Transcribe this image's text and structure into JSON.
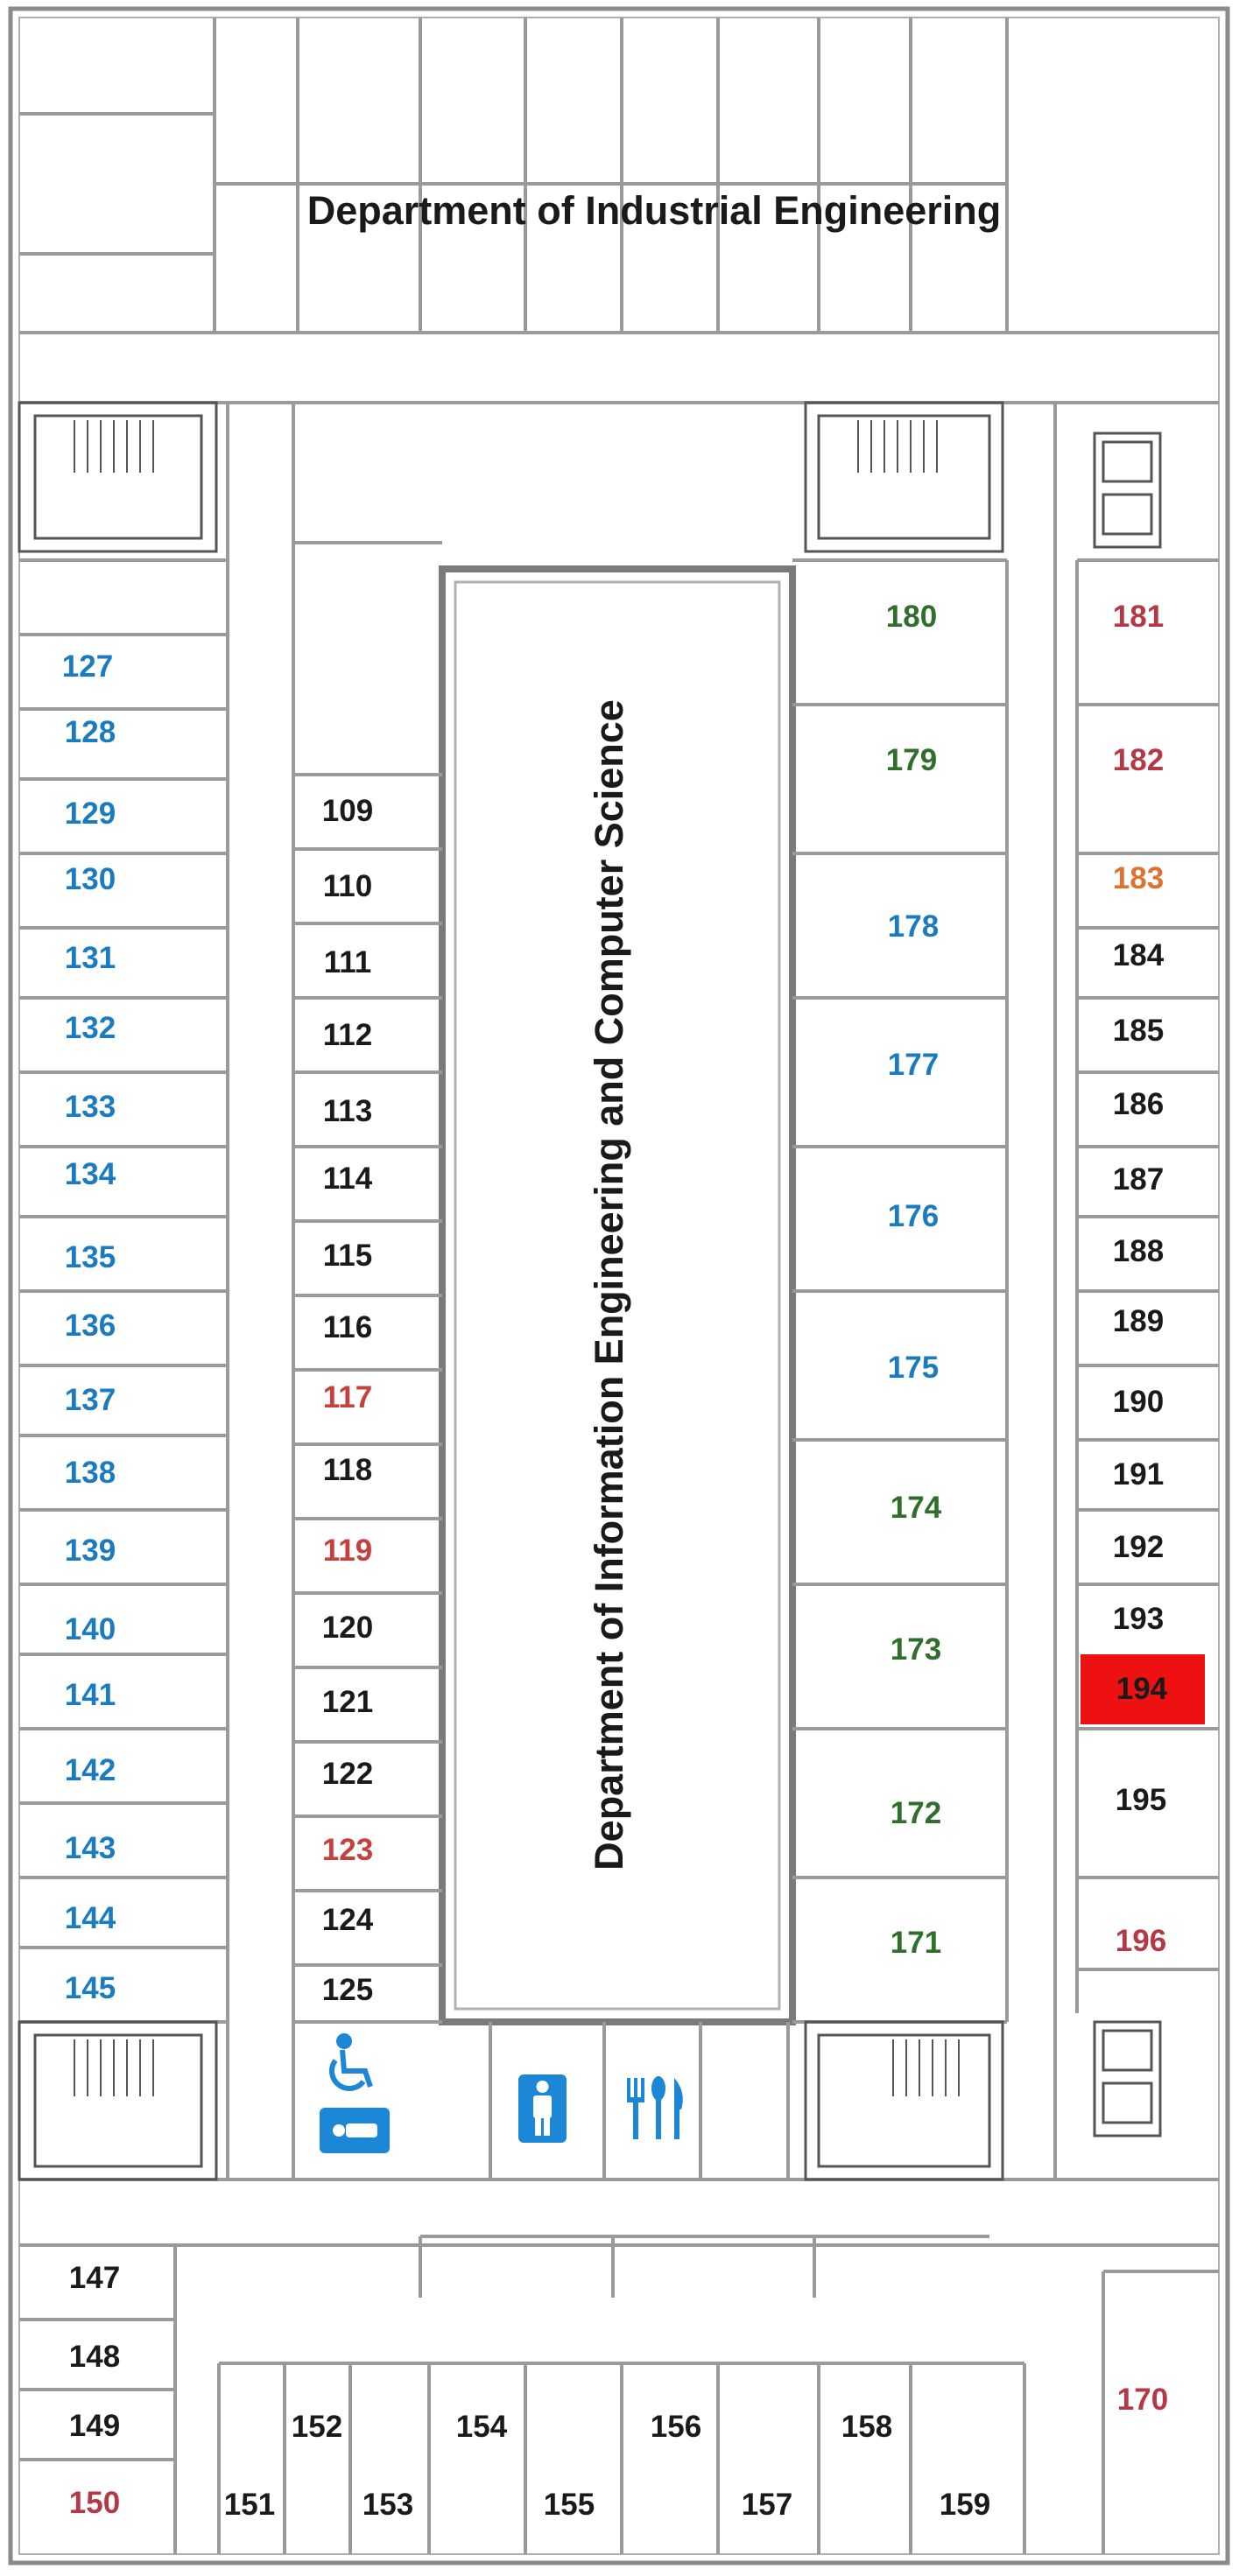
{
  "departments": {
    "top": "Department of Industrial Engineering",
    "center": "Department of Information Engineering and Computer Science"
  },
  "colors": {
    "black": "#1a1a1a",
    "blue": "#1b7bc0",
    "green": "#2f6f2b",
    "red": "#c6403c",
    "crimson": "#b53845",
    "orange": "#e0722f",
    "highlight": "#ee1111",
    "icon_blue": "#1b87d6"
  },
  "highlighted_room": "194",
  "rooms": [
    {
      "id": "127",
      "c": "blue"
    },
    {
      "id": "128",
      "c": "blue"
    },
    {
      "id": "129",
      "c": "blue"
    },
    {
      "id": "130",
      "c": "blue"
    },
    {
      "id": "131",
      "c": "blue"
    },
    {
      "id": "132",
      "c": "blue"
    },
    {
      "id": "133",
      "c": "blue"
    },
    {
      "id": "134",
      "c": "blue"
    },
    {
      "id": "135",
      "c": "blue"
    },
    {
      "id": "136",
      "c": "blue"
    },
    {
      "id": "137",
      "c": "blue"
    },
    {
      "id": "138",
      "c": "blue"
    },
    {
      "id": "139",
      "c": "blue"
    },
    {
      "id": "140",
      "c": "blue"
    },
    {
      "id": "141",
      "c": "blue"
    },
    {
      "id": "142",
      "c": "blue"
    },
    {
      "id": "143",
      "c": "blue"
    },
    {
      "id": "144",
      "c": "blue"
    },
    {
      "id": "145",
      "c": "blue"
    },
    {
      "id": "109",
      "c": "black"
    },
    {
      "id": "110",
      "c": "black"
    },
    {
      "id": "111",
      "c": "black"
    },
    {
      "id": "112",
      "c": "black"
    },
    {
      "id": "113",
      "c": "black"
    },
    {
      "id": "114",
      "c": "black"
    },
    {
      "id": "115",
      "c": "black"
    },
    {
      "id": "116",
      "c": "black"
    },
    {
      "id": "117",
      "c": "red"
    },
    {
      "id": "118",
      "c": "black"
    },
    {
      "id": "119",
      "c": "red"
    },
    {
      "id": "120",
      "c": "black"
    },
    {
      "id": "121",
      "c": "black"
    },
    {
      "id": "122",
      "c": "black"
    },
    {
      "id": "123",
      "c": "red"
    },
    {
      "id": "124",
      "c": "black"
    },
    {
      "id": "125",
      "c": "black"
    },
    {
      "id": "180",
      "c": "green"
    },
    {
      "id": "179",
      "c": "green"
    },
    {
      "id": "178",
      "c": "blue"
    },
    {
      "id": "177",
      "c": "blue"
    },
    {
      "id": "176",
      "c": "blue"
    },
    {
      "id": "175",
      "c": "blue"
    },
    {
      "id": "174",
      "c": "green"
    },
    {
      "id": "173",
      "c": "green"
    },
    {
      "id": "172",
      "c": "green"
    },
    {
      "id": "171",
      "c": "green"
    },
    {
      "id": "181",
      "c": "crimson"
    },
    {
      "id": "182",
      "c": "crimson"
    },
    {
      "id": "183",
      "c": "orange"
    },
    {
      "id": "184",
      "c": "black"
    },
    {
      "id": "185",
      "c": "black"
    },
    {
      "id": "186",
      "c": "black"
    },
    {
      "id": "187",
      "c": "black"
    },
    {
      "id": "188",
      "c": "black"
    },
    {
      "id": "189",
      "c": "black"
    },
    {
      "id": "190",
      "c": "black"
    },
    {
      "id": "191",
      "c": "black"
    },
    {
      "id": "192",
      "c": "black"
    },
    {
      "id": "193",
      "c": "black"
    },
    {
      "id": "194",
      "c": "black"
    },
    {
      "id": "195",
      "c": "black"
    },
    {
      "id": "196",
      "c": "crimson"
    },
    {
      "id": "147",
      "c": "black"
    },
    {
      "id": "148",
      "c": "black"
    },
    {
      "id": "149",
      "c": "black"
    },
    {
      "id": "150",
      "c": "crimson"
    },
    {
      "id": "151",
      "c": "black"
    },
    {
      "id": "152",
      "c": "black"
    },
    {
      "id": "153",
      "c": "black"
    },
    {
      "id": "154",
      "c": "black"
    },
    {
      "id": "155",
      "c": "black"
    },
    {
      "id": "156",
      "c": "black"
    },
    {
      "id": "157",
      "c": "black"
    },
    {
      "id": "158",
      "c": "black"
    },
    {
      "id": "159",
      "c": "black"
    },
    {
      "id": "170",
      "c": "crimson"
    }
  ],
  "icons": [
    "wheelchair-icon",
    "disabled-toilet-icon",
    "restroom-icon",
    "cafeteria-icon",
    "staircase-icon",
    "elevator-icon"
  ]
}
